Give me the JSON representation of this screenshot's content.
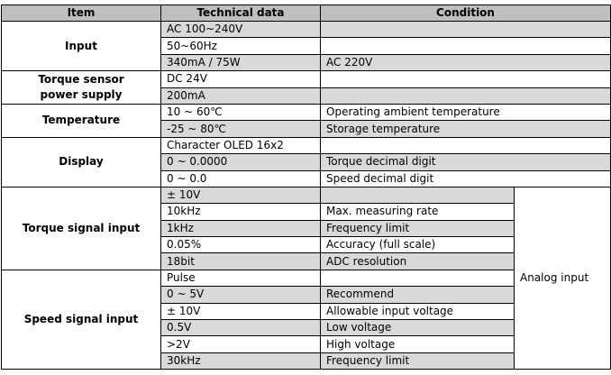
{
  "headers": {
    "item": "Item",
    "technical": "Technical data",
    "condition": "Condition"
  },
  "groups": {
    "input": {
      "label": "Input",
      "rows": [
        {
          "tech": "AC 100~240V",
          "cond": ""
        },
        {
          "tech": "50~60Hz",
          "cond": ""
        },
        {
          "tech": "340mA / 75W",
          "cond": "AC 220V"
        }
      ]
    },
    "torque_power": {
      "label_line1": "Torque sensor",
      "label_line2": "power supply",
      "rows": [
        {
          "tech": "DC 24V",
          "cond": ""
        },
        {
          "tech": "200mA",
          "cond": ""
        }
      ]
    },
    "temperature": {
      "label": "Temperature",
      "rows": [
        {
          "tech": "10 ~ 60℃",
          "cond": "Operating ambient temperature"
        },
        {
          "tech": "-25 ~ 80℃",
          "cond": "Storage temperature"
        }
      ]
    },
    "display": {
      "label": "Display",
      "rows": [
        {
          "tech": "Character OLED 16x2",
          "cond": ""
        },
        {
          "tech": "0 ~ 0.0000",
          "cond": "Torque  decimal digit"
        },
        {
          "tech": "0 ~ 0.0",
          "cond": "Speed decimal digit"
        }
      ]
    },
    "torque_signal": {
      "label": "Torque signal input",
      "rows": [
        {
          "tech": "± 10V",
          "cond": ""
        },
        {
          "tech": "10kHz",
          "cond": "Max. measuring rate"
        },
        {
          "tech": "1kHz",
          "cond": "Frequency limit"
        },
        {
          "tech": "0.05%",
          "cond": "Accuracy (full scale)"
        },
        {
          "tech": "18bit",
          "cond": "ADC resolution"
        }
      ]
    },
    "speed_signal": {
      "label": "Speed signal input",
      "rows": [
        {
          "tech": "Pulse",
          "cond": ""
        },
        {
          "tech": "0 ~ 5V",
          "cond": "Recommend"
        },
        {
          "tech": "± 10V",
          "cond": "Allowable input voltage"
        },
        {
          "tech": "0.5V",
          "cond": "Low voltage"
        },
        {
          "tech": ">2V",
          "cond": "High voltage"
        },
        {
          "tech": "30kHz",
          "cond": "Frequency limit"
        }
      ]
    }
  },
  "analog_note": "Analog input",
  "colors": {
    "header": "#bfbfbf",
    "shaded": "#d9d9d9",
    "white": "#ffffff",
    "border": "#000000"
  }
}
